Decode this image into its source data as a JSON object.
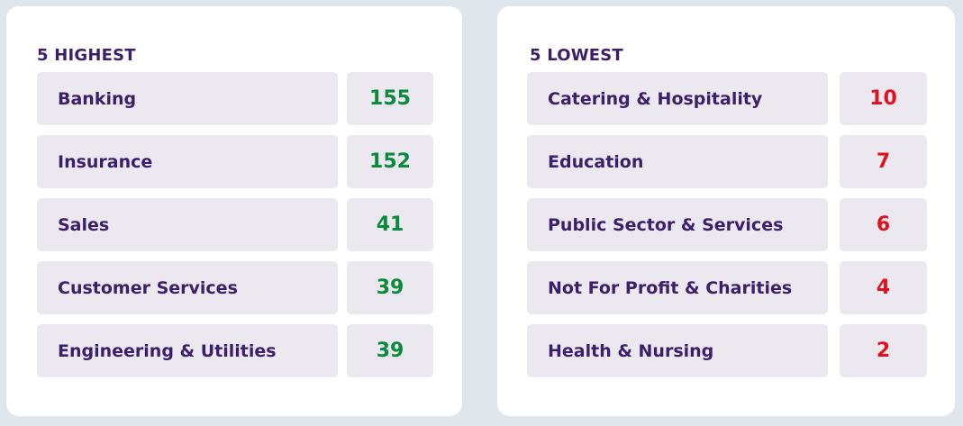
{
  "highest": {
    "title": "5 HIGHEST",
    "items": [
      {
        "label": "Banking",
        "value": "155"
      },
      {
        "label": "Insurance",
        "value": "152"
      },
      {
        "label": "Sales",
        "value": "41"
      },
      {
        "label": "Customer Services",
        "value": "39"
      },
      {
        "label": "Engineering & Utilities",
        "value": "39"
      }
    ]
  },
  "lowest": {
    "title": "5 LOWEST",
    "items": [
      {
        "label": "Catering & Hospitality",
        "value": "10"
      },
      {
        "label": "Education",
        "value": "7"
      },
      {
        "label": "Public Sector & Services",
        "value": "6"
      },
      {
        "label": "Not For Profit & Charities",
        "value": "4"
      },
      {
        "label": "Health & Nursing",
        "value": "2"
      }
    ]
  },
  "colors": {
    "highest_value": "#0a8a3a",
    "lowest_value": "#e0121f",
    "label_text": "#3b1f6b",
    "cell_background": "#ebe8f0"
  }
}
